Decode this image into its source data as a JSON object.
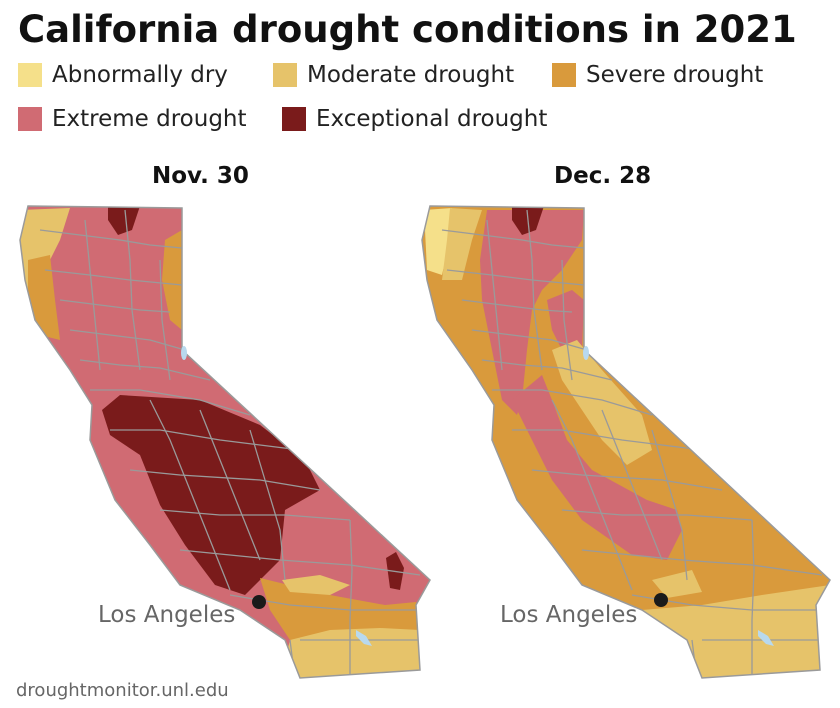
{
  "title": "California drought conditions in 2021",
  "legend": [
    {
      "label": "Abnormally dry",
      "color": "#f5e08a"
    },
    {
      "label": "Moderate drought",
      "color": "#e6c36a"
    },
    {
      "label": "Severe drought",
      "color": "#d99a3c"
    },
    {
      "label": "Extreme drought",
      "color": "#d06b73"
    },
    {
      "label": "Exceptional drought",
      "color": "#7a1b1b"
    }
  ],
  "maps": [
    {
      "label": "Nov. 30",
      "city": "Los Angeles"
    },
    {
      "label": "Dec. 28",
      "city": "Los Angeles"
    }
  ],
  "colors": {
    "county_lines": "#9a9a9a",
    "water": "#b8d9ee",
    "city_marker": "#1a1a1a"
  },
  "source": "droughtmonitor.unl.edu"
}
